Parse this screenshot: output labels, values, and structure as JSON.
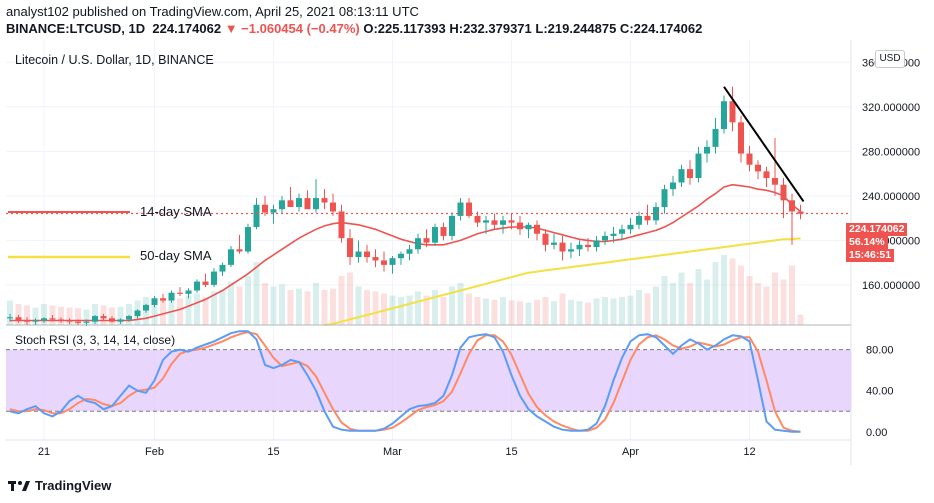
{
  "header": {
    "publisher_line": "analyst102 published on TradingView.com, April 25, 2021 08:13:11 UTC",
    "symbol": "BINANCE:LTCUSD, 1D",
    "last": "224.174062",
    "change": "▼ −1.060454 (−0.47%)",
    "ohlc": "O:225.117393 H:232.379371 L:219.244875 C:224.174062"
  },
  "pane": {
    "title": "Litecoin / U.S. Dollar, 1D, BINANCE",
    "currency_button": "USD",
    "sma14_label": "14-day SMA",
    "sma50_label": "50-day SMA",
    "price_tag": "224.174062",
    "pct_tag": "56.14%",
    "time_tag": "15:46:51"
  },
  "rsi_pane": {
    "title": "Stoch RSI (3, 3, 14, 14, close)"
  },
  "footer": {
    "brand": "TradingView"
  },
  "colors": {
    "up": "#26a69a",
    "down": "#ef5350",
    "sma14": "#ef5350",
    "sma50": "#f5e042",
    "k_line": "#5b9cf6",
    "d_line": "#ff8a65",
    "rsi_band": "#e1c8fb",
    "trendline": "#000000"
  },
  "chart_data": {
    "type": "candlestick",
    "title": "Litecoin / U.S. Dollar, 1D, BINANCE",
    "x_ticks": [
      "21",
      "Feb",
      "15",
      "Mar",
      "15",
      "Apr",
      "12"
    ],
    "price_axis": {
      "ticks": [
        160,
        200,
        240,
        280,
        320,
        360
      ],
      "ylim": [
        124,
        380
      ]
    },
    "ohlc": [
      [
        130,
        134,
        127,
        131
      ],
      [
        131,
        133,
        126,
        128
      ],
      [
        128,
        131,
        124,
        127
      ],
      [
        127,
        130,
        124,
        128
      ],
      [
        128,
        131,
        126,
        130
      ],
      [
        130,
        133,
        127,
        129
      ],
      [
        129,
        131,
        126,
        128
      ],
      [
        128,
        130,
        125,
        127
      ],
      [
        127,
        129,
        124,
        126
      ],
      [
        126,
        129,
        123,
        127
      ],
      [
        127,
        133,
        125,
        132
      ],
      [
        132,
        134,
        128,
        130
      ],
      [
        130,
        132,
        126,
        127
      ],
      [
        127,
        130,
        125,
        129
      ],
      [
        129,
        133,
        127,
        132
      ],
      [
        132,
        138,
        130,
        137
      ],
      [
        137,
        143,
        135,
        142
      ],
      [
        142,
        150,
        140,
        148
      ],
      [
        148,
        152,
        144,
        146
      ],
      [
        146,
        155,
        144,
        153
      ],
      [
        153,
        158,
        150,
        152
      ],
      [
        152,
        157,
        148,
        155
      ],
      [
        155,
        165,
        153,
        163
      ],
      [
        163,
        170,
        158,
        160
      ],
      [
        160,
        175,
        158,
        172
      ],
      [
        172,
        180,
        168,
        178
      ],
      [
        178,
        195,
        176,
        192
      ],
      [
        192,
        205,
        188,
        190
      ],
      [
        190,
        215,
        188,
        212
      ],
      [
        212,
        238,
        210,
        232
      ],
      [
        232,
        240,
        222,
        225
      ],
      [
        225,
        232,
        215,
        228
      ],
      [
        228,
        240,
        224,
        236
      ],
      [
        236,
        248,
        230,
        230
      ],
      [
        230,
        242,
        226,
        238
      ],
      [
        238,
        245,
        230,
        228
      ],
      [
        228,
        255,
        225,
        238
      ],
      [
        238,
        246,
        228,
        234
      ],
      [
        234,
        242,
        222,
        226
      ],
      [
        226,
        232,
        198,
        202
      ],
      [
        202,
        210,
        178,
        185
      ],
      [
        185,
        200,
        180,
        190
      ],
      [
        190,
        196,
        180,
        185
      ],
      [
        185,
        192,
        176,
        182
      ],
      [
        182,
        190,
        172,
        178
      ],
      [
        178,
        186,
        170,
        184
      ],
      [
        184,
        190,
        178,
        188
      ],
      [
        188,
        196,
        182,
        192
      ],
      [
        192,
        206,
        188,
        202
      ],
      [
        202,
        210,
        194,
        198
      ],
      [
        198,
        215,
        195,
        212
      ],
      [
        212,
        216,
        200,
        204
      ],
      [
        204,
        225,
        200,
        222
      ],
      [
        222,
        238,
        218,
        234
      ],
      [
        234,
        238,
        220,
        222
      ],
      [
        222,
        226,
        212,
        216
      ],
      [
        216,
        222,
        206,
        218
      ],
      [
        218,
        224,
        210,
        214
      ],
      [
        214,
        222,
        206,
        218
      ],
      [
        218,
        224,
        210,
        216
      ],
      [
        216,
        222,
        205,
        210
      ],
      [
        210,
        216,
        202,
        214
      ],
      [
        214,
        218,
        200,
        206
      ],
      [
        206,
        210,
        190,
        196
      ],
      [
        196,
        206,
        192,
        198
      ],
      [
        198,
        204,
        182,
        190
      ],
      [
        190,
        198,
        184,
        192
      ],
      [
        192,
        200,
        186,
        196
      ],
      [
        196,
        202,
        190,
        194
      ],
      [
        194,
        204,
        190,
        200
      ],
      [
        200,
        208,
        196,
        204
      ],
      [
        204,
        212,
        198,
        206
      ],
      [
        206,
        214,
        200,
        210
      ],
      [
        210,
        220,
        206,
        214
      ],
      [
        214,
        226,
        210,
        222
      ],
      [
        222,
        232,
        214,
        218
      ],
      [
        218,
        234,
        214,
        230
      ],
      [
        230,
        250,
        224,
        246
      ],
      [
        246,
        258,
        240,
        252
      ],
      [
        252,
        268,
        248,
        264
      ],
      [
        264,
        272,
        250,
        256
      ],
      [
        256,
        284,
        252,
        278
      ],
      [
        278,
        290,
        270,
        284
      ],
      [
        284,
        310,
        278,
        300
      ],
      [
        300,
        330,
        296,
        325
      ],
      [
        325,
        338,
        298,
        306
      ],
      [
        306,
        312,
        270,
        278
      ],
      [
        278,
        285,
        262,
        268
      ],
      [
        268,
        272,
        255,
        262
      ],
      [
        262,
        266,
        248,
        256
      ],
      [
        256,
        292,
        240,
        250
      ],
      [
        250,
        256,
        220,
        236
      ],
      [
        236,
        242,
        196,
        226
      ],
      [
        226,
        232,
        219,
        224
      ]
    ],
    "sma14": [
      128,
      128,
      128,
      128,
      128,
      128,
      128,
      128,
      128,
      128,
      128,
      128,
      128,
      128,
      128,
      129,
      130,
      132,
      134,
      136,
      138,
      141,
      144,
      147,
      151,
      155,
      160,
      165,
      170,
      176,
      182,
      187,
      192,
      197,
      202,
      206,
      210,
      213,
      215,
      216,
      215,
      214,
      212,
      210,
      207,
      204,
      201,
      199,
      197,
      196,
      196,
      196,
      198,
      200,
      203,
      206,
      208,
      210,
      211,
      212,
      212,
      212,
      211,
      209,
      207,
      205,
      203,
      201,
      200,
      199,
      199,
      200,
      201,
      203,
      205,
      207,
      209,
      212,
      216,
      221,
      226,
      231,
      237,
      242,
      248,
      250,
      249,
      248,
      246,
      245,
      243,
      240,
      232,
      226
    ],
    "sma50": [
      null,
      null,
      null,
      null,
      null,
      null,
      null,
      null,
      null,
      null,
      null,
      null,
      null,
      null,
      null,
      null,
      null,
      null,
      null,
      null,
      null,
      null,
      null,
      null,
      null,
      null,
      null,
      null,
      null,
      null,
      null,
      null,
      null,
      null,
      null,
      null,
      null,
      124,
      125,
      127,
      129,
      131,
      133,
      135,
      137,
      139,
      141,
      143,
      145,
      147,
      149,
      151,
      153,
      155,
      157,
      159,
      161,
      163,
      165,
      167,
      169,
      171,
      172,
      173,
      174,
      175,
      176,
      177,
      178,
      179,
      180,
      181,
      182,
      183,
      184,
      185,
      186,
      187,
      188,
      189,
      190,
      191,
      192,
      193,
      194,
      195,
      196,
      197,
      198,
      199,
      200,
      201,
      201,
      202
    ],
    "volume": [
      0.35,
      0.3,
      0.28,
      0.25,
      0.3,
      0.28,
      0.26,
      0.25,
      0.24,
      0.22,
      0.3,
      0.28,
      0.25,
      0.26,
      0.3,
      0.35,
      0.4,
      0.38,
      0.36,
      0.4,
      0.38,
      0.42,
      0.45,
      0.4,
      0.48,
      0.5,
      0.62,
      0.55,
      0.7,
      0.9,
      0.6,
      0.55,
      0.58,
      0.5,
      0.52,
      0.48,
      0.6,
      0.5,
      0.52,
      0.7,
      0.75,
      0.55,
      0.5,
      0.48,
      0.45,
      0.42,
      0.4,
      0.42,
      0.48,
      0.42,
      0.5,
      0.4,
      0.55,
      0.6,
      0.45,
      0.4,
      0.38,
      0.36,
      0.4,
      0.35,
      0.34,
      0.32,
      0.36,
      0.4,
      0.34,
      0.45,
      0.36,
      0.34,
      0.32,
      0.38,
      0.4,
      0.38,
      0.4,
      0.42,
      0.5,
      0.45,
      0.55,
      0.7,
      0.6,
      0.75,
      0.6,
      0.8,
      0.65,
      0.9,
      1.0,
      0.95,
      0.85,
      0.7,
      0.6,
      0.55,
      0.75,
      0.65,
      0.85,
      0.15
    ],
    "stoch_k": [
      20,
      18,
      22,
      25,
      18,
      15,
      20,
      30,
      35,
      30,
      28,
      22,
      25,
      35,
      45,
      40,
      38,
      50,
      70,
      78,
      80,
      78,
      82,
      85,
      88,
      92,
      96,
      98,
      98,
      90,
      65,
      62,
      65,
      70,
      68,
      55,
      40,
      20,
      5,
      2,
      1,
      1,
      1,
      1,
      3,
      8,
      15,
      22,
      25,
      26,
      28,
      35,
      55,
      82,
      92,
      94,
      95,
      92,
      78,
      55,
      35,
      22,
      15,
      10,
      5,
      2,
      1,
      1,
      2,
      8,
      25,
      50,
      72,
      88,
      94,
      95,
      92,
      84,
      76,
      84,
      90,
      86,
      80,
      84,
      90,
      94,
      93,
      88,
      50,
      10,
      2,
      1,
      0,
      0
    ],
    "stoch_d": [
      22,
      20,
      20,
      22,
      21,
      18,
      18,
      22,
      28,
      32,
      31,
      27,
      25,
      28,
      35,
      40,
      41,
      43,
      52,
      66,
      76,
      79,
      80,
      82,
      85,
      88,
      92,
      95,
      97,
      95,
      84,
      72,
      64,
      66,
      68,
      64,
      54,
      38,
      22,
      9,
      3,
      1,
      1,
      1,
      2,
      4,
      9,
      15,
      21,
      24,
      26,
      30,
      39,
      57,
      76,
      89,
      94,
      94,
      88,
      75,
      56,
      37,
      24,
      16,
      10,
      6,
      3,
      1,
      1,
      4,
      12,
      28,
      49,
      70,
      85,
      92,
      94,
      90,
      84,
      81,
      83,
      87,
      85,
      83,
      85,
      89,
      92,
      92,
      78,
      50,
      20,
      4,
      1,
      0
    ],
    "rsi_axis": {
      "ticks": [
        0,
        40,
        80
      ],
      "ylim": [
        -8,
        104
      ]
    },
    "current_price": 224.174062
  }
}
